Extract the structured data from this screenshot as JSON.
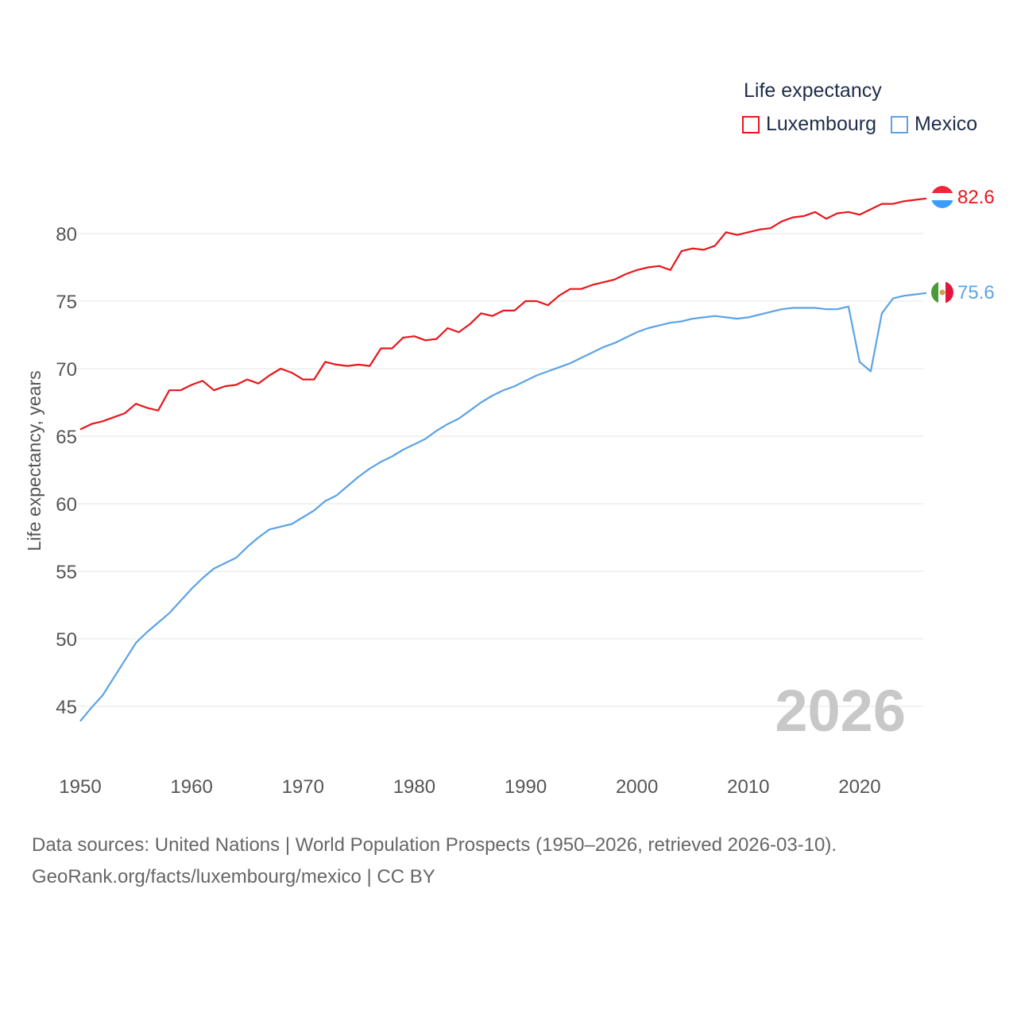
{
  "legend": {
    "title": "Life expectancy",
    "luxembourg": "Luxembourg",
    "mexico": "Mexico"
  },
  "source": {
    "line1": "Data sources: United Nations | World Population Prospects (1950–2026, retrieved 2026-03-10).",
    "line2": "GeoRank.org/facts/luxembourg/mexico | CC BY"
  },
  "colors": {
    "luxembourg": "#e8161b",
    "mexico": "#5ca3e6",
    "grid": "#e6e6e6",
    "axis_text": "#555555",
    "year_watermark": "#c8c8c8"
  },
  "chart_data": {
    "type": "line",
    "title": "Life expectancy",
    "ylabel": "Life expectancy, years",
    "xlabel": "",
    "xlim": [
      1950,
      2026
    ],
    "ylim": [
      42,
      85
    ],
    "yticks": [
      45,
      50,
      55,
      60,
      65,
      70,
      75,
      80
    ],
    "xticks": [
      1950,
      1960,
      1970,
      1980,
      1990,
      2000,
      2010,
      2020
    ],
    "year_label": "2026",
    "end_labels": {
      "luxembourg": "82.6",
      "mexico": "75.6"
    },
    "x": [
      1950,
      1951,
      1952,
      1953,
      1954,
      1955,
      1956,
      1957,
      1958,
      1959,
      1960,
      1961,
      1962,
      1963,
      1964,
      1965,
      1966,
      1967,
      1968,
      1969,
      1970,
      1971,
      1972,
      1973,
      1974,
      1975,
      1976,
      1977,
      1978,
      1979,
      1980,
      1981,
      1982,
      1983,
      1984,
      1985,
      1986,
      1987,
      1988,
      1989,
      1990,
      1991,
      1992,
      1993,
      1994,
      1995,
      1996,
      1997,
      1998,
      1999,
      2000,
      2001,
      2002,
      2003,
      2004,
      2005,
      2006,
      2007,
      2008,
      2009,
      2010,
      2011,
      2012,
      2013,
      2014,
      2015,
      2016,
      2017,
      2018,
      2019,
      2020,
      2021,
      2022,
      2023,
      2024,
      2025,
      2026
    ],
    "series": [
      {
        "name": "Luxembourg",
        "key": "luxembourg",
        "values": [
          65.5,
          65.9,
          66.1,
          66.4,
          66.7,
          67.4,
          67.1,
          66.9,
          68.4,
          68.4,
          68.8,
          69.1,
          68.4,
          68.7,
          68.8,
          69.2,
          68.9,
          69.5,
          70.0,
          69.7,
          69.2,
          69.2,
          70.5,
          70.3,
          70.2,
          70.3,
          70.2,
          71.5,
          71.5,
          72.3,
          72.4,
          72.1,
          72.2,
          73.0,
          72.7,
          73.3,
          74.1,
          73.9,
          74.3,
          74.3,
          75.0,
          75.0,
          74.7,
          75.4,
          75.9,
          75.9,
          76.2,
          76.4,
          76.6,
          77.0,
          77.3,
          77.5,
          77.6,
          77.3,
          78.7,
          78.9,
          78.8,
          79.1,
          80.1,
          79.9,
          80.1,
          80.3,
          80.4,
          80.9,
          81.2,
          81.3,
          81.6,
          81.1,
          81.5,
          81.6,
          81.4,
          81.8,
          82.2,
          82.2,
          82.4,
          82.5,
          82.6
        ]
      },
      {
        "name": "Mexico",
        "key": "mexico",
        "values": [
          43.9,
          44.9,
          45.8,
          47.1,
          48.4,
          49.7,
          50.5,
          51.2,
          51.9,
          52.8,
          53.7,
          54.5,
          55.2,
          55.6,
          56.0,
          56.8,
          57.5,
          58.1,
          58.3,
          58.5,
          59.0,
          59.5,
          60.2,
          60.6,
          61.3,
          62.0,
          62.6,
          63.1,
          63.5,
          64.0,
          64.4,
          64.8,
          65.4,
          65.9,
          66.3,
          66.9,
          67.5,
          68.0,
          68.4,
          68.7,
          69.1,
          69.5,
          69.8,
          70.1,
          70.4,
          70.8,
          71.2,
          71.6,
          71.9,
          72.3,
          72.7,
          73.0,
          73.2,
          73.4,
          73.5,
          73.7,
          73.8,
          73.9,
          73.8,
          73.7,
          73.8,
          74.0,
          74.2,
          74.4,
          74.5,
          74.5,
          74.5,
          74.4,
          74.4,
          74.6,
          70.5,
          69.8,
          74.1,
          75.2,
          75.4,
          75.5,
          75.6
        ]
      }
    ]
  }
}
